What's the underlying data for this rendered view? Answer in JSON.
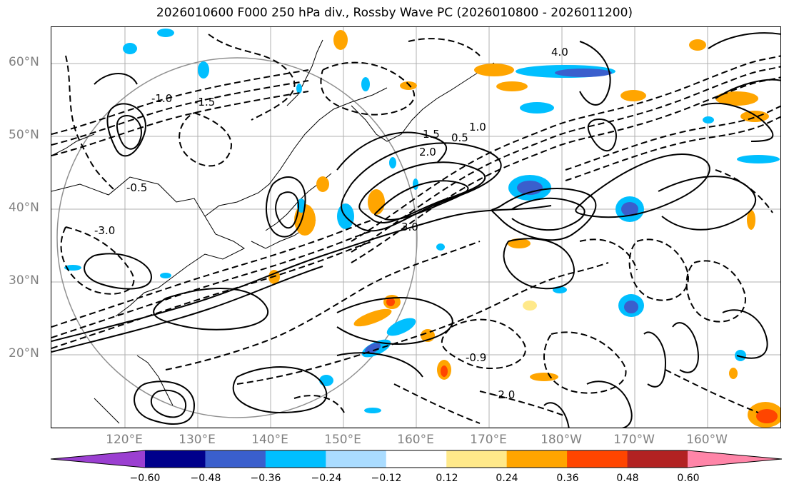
{
  "title": "2026010600 F000 250 hPa div., Rossby Wave PC (2026010800 - 2026011200)",
  "map": {
    "latitude_labels": [
      "60°N",
      "50°N",
      "40°N",
      "30°N",
      "20°N"
    ],
    "longitude_labels": [
      "120°E",
      "130°E",
      "140°E",
      "150°E",
      "160°E",
      "170°E",
      "180°W",
      "170°W",
      "160°W"
    ],
    "contour_labels": [
      "-1.5",
      "-1.0",
      "-0.5",
      "0.5",
      "1.0",
      "1.5",
      "2.0",
      "3.0",
      "4.0",
      "-3.0",
      "-2.0",
      "-0.9"
    ]
  },
  "colorbar": {
    "ticks": [
      "−0.60",
      "−0.48",
      "−0.36",
      "−0.24",
      "−0.12",
      "0.12",
      "0.24",
      "0.36",
      "0.48",
      "0.60"
    ],
    "colors": [
      "#9b3fd1",
      "#00008b",
      "#3a5fcd",
      "#00bfff",
      "#aadcff",
      "#ffffff",
      "#ffe98a",
      "#ffa500",
      "#ff4500",
      "#b22222",
      "#ff85a8"
    ]
  }
}
